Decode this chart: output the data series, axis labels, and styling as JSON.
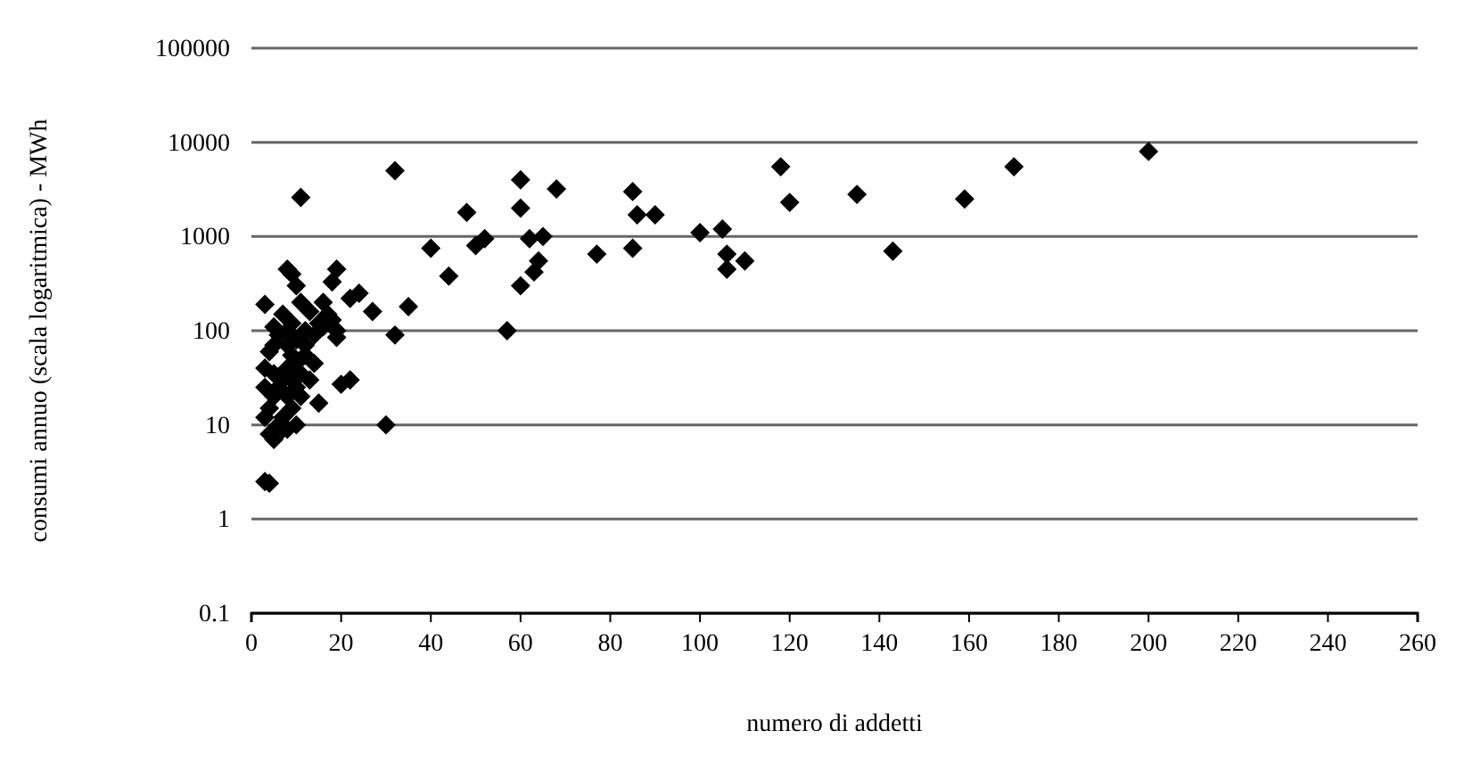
{
  "chart_data": {
    "type": "scatter",
    "xlabel": "numero di addetti",
    "ylabel": "consumi annuo (scala logaritmica) - MWh",
    "log": "y",
    "grid": "y",
    "marker": "diamond",
    "xlim": [
      0,
      260
    ],
    "xticks": [
      0,
      20,
      40,
      60,
      80,
      100,
      120,
      140,
      160,
      180,
      200,
      220,
      240,
      260
    ],
    "ylim": [
      0.1,
      100000
    ],
    "yticks": [
      0.1,
      1,
      10,
      100,
      1000,
      10000,
      100000
    ],
    "series": [
      {
        "color": "#000000",
        "x": [
          200,
          170,
          159,
          143,
          135,
          120,
          118,
          110,
          106,
          106,
          105,
          100,
          90,
          86,
          85,
          85,
          77,
          68,
          65,
          64,
          63,
          62,
          60,
          60,
          60,
          57,
          52,
          50,
          48,
          44,
          40,
          35,
          32,
          32,
          30,
          27,
          24,
          22,
          22,
          20,
          19,
          19,
          18,
          17,
          16,
          15,
          15,
          14,
          13,
          12,
          11,
          11,
          10,
          10,
          9,
          8,
          8,
          7,
          6,
          5,
          4,
          3,
          3,
          4,
          3,
          3,
          3,
          4,
          4,
          5,
          5,
          5,
          5,
          6,
          6,
          7,
          7,
          8,
          8,
          8,
          8,
          9,
          9,
          9,
          10,
          10,
          10,
          11,
          11,
          12,
          13,
          9,
          7,
          12,
          14,
          16,
          18,
          19
        ],
        "values": [
          8000,
          5500,
          2500,
          700,
          2800,
          2300,
          5500,
          550,
          650,
          450,
          1200,
          1100,
          1700,
          1700,
          3000,
          750,
          650,
          3200,
          1000,
          550,
          420,
          950,
          4000,
          2000,
          300,
          100,
          950,
          800,
          1800,
          380,
          750,
          180,
          5000,
          90,
          10,
          160,
          250,
          220,
          30,
          27,
          450,
          100,
          330,
          150,
          200,
          17,
          120,
          90,
          160,
          55,
          2600,
          200,
          10,
          300,
          400,
          450,
          100,
          150,
          90,
          110,
          60,
          190,
          2.5,
          2.4,
          12,
          25,
          40,
          8,
          15,
          7,
          20,
          35,
          70,
          10,
          25,
          12,
          30,
          9,
          20,
          40,
          70,
          15,
          30,
          55,
          25,
          45,
          80,
          20,
          35,
          100,
          30,
          120,
          9,
          70,
          45,
          110,
          130,
          85
        ]
      }
    ]
  }
}
